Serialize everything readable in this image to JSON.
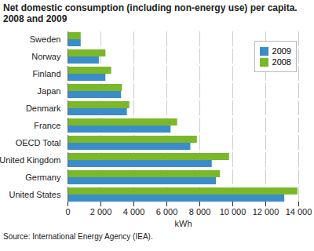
{
  "chart_data": {
    "type": "bar",
    "orientation": "horizontal",
    "title": "Net domestic consumption (including non-energy use) per capita. 2008 and 2009",
    "caption": "Source: International Energy Agency (IEA).",
    "x_label": "kWh",
    "categories": [
      "Sweden",
      "Norway",
      "Finland",
      "Japan",
      "Denmark",
      "France",
      "OECD Total",
      "United Kingdom",
      "Germany",
      "United States"
    ],
    "series": [
      {
        "name": "2009",
        "color": "#3a8dc8",
        "values": [
          800,
          1900,
          2300,
          3250,
          3600,
          6250,
          7450,
          8750,
          9000,
          13150
        ]
      },
      {
        "name": "2008",
        "color": "#7ab829",
        "values": [
          800,
          2300,
          2650,
          3300,
          3750,
          6650,
          7850,
          9800,
          9250,
          13950
        ]
      }
    ],
    "xlim": [
      0,
      14000
    ],
    "xticks": [
      0,
      {
        "value": 2000,
        "label": "2 000"
      },
      {
        "value": 4000,
        "label": "4 000"
      },
      {
        "value": 6000,
        "label": "6 000"
      },
      {
        "value": 8000,
        "label": "8 000"
      },
      {
        "value": 10000,
        "label": "10 000"
      },
      {
        "value": 12000,
        "label": "12 000"
      },
      {
        "value": 14000,
        "label": "14 000"
      }
    ],
    "grid": true,
    "legend": "upper right"
  }
}
